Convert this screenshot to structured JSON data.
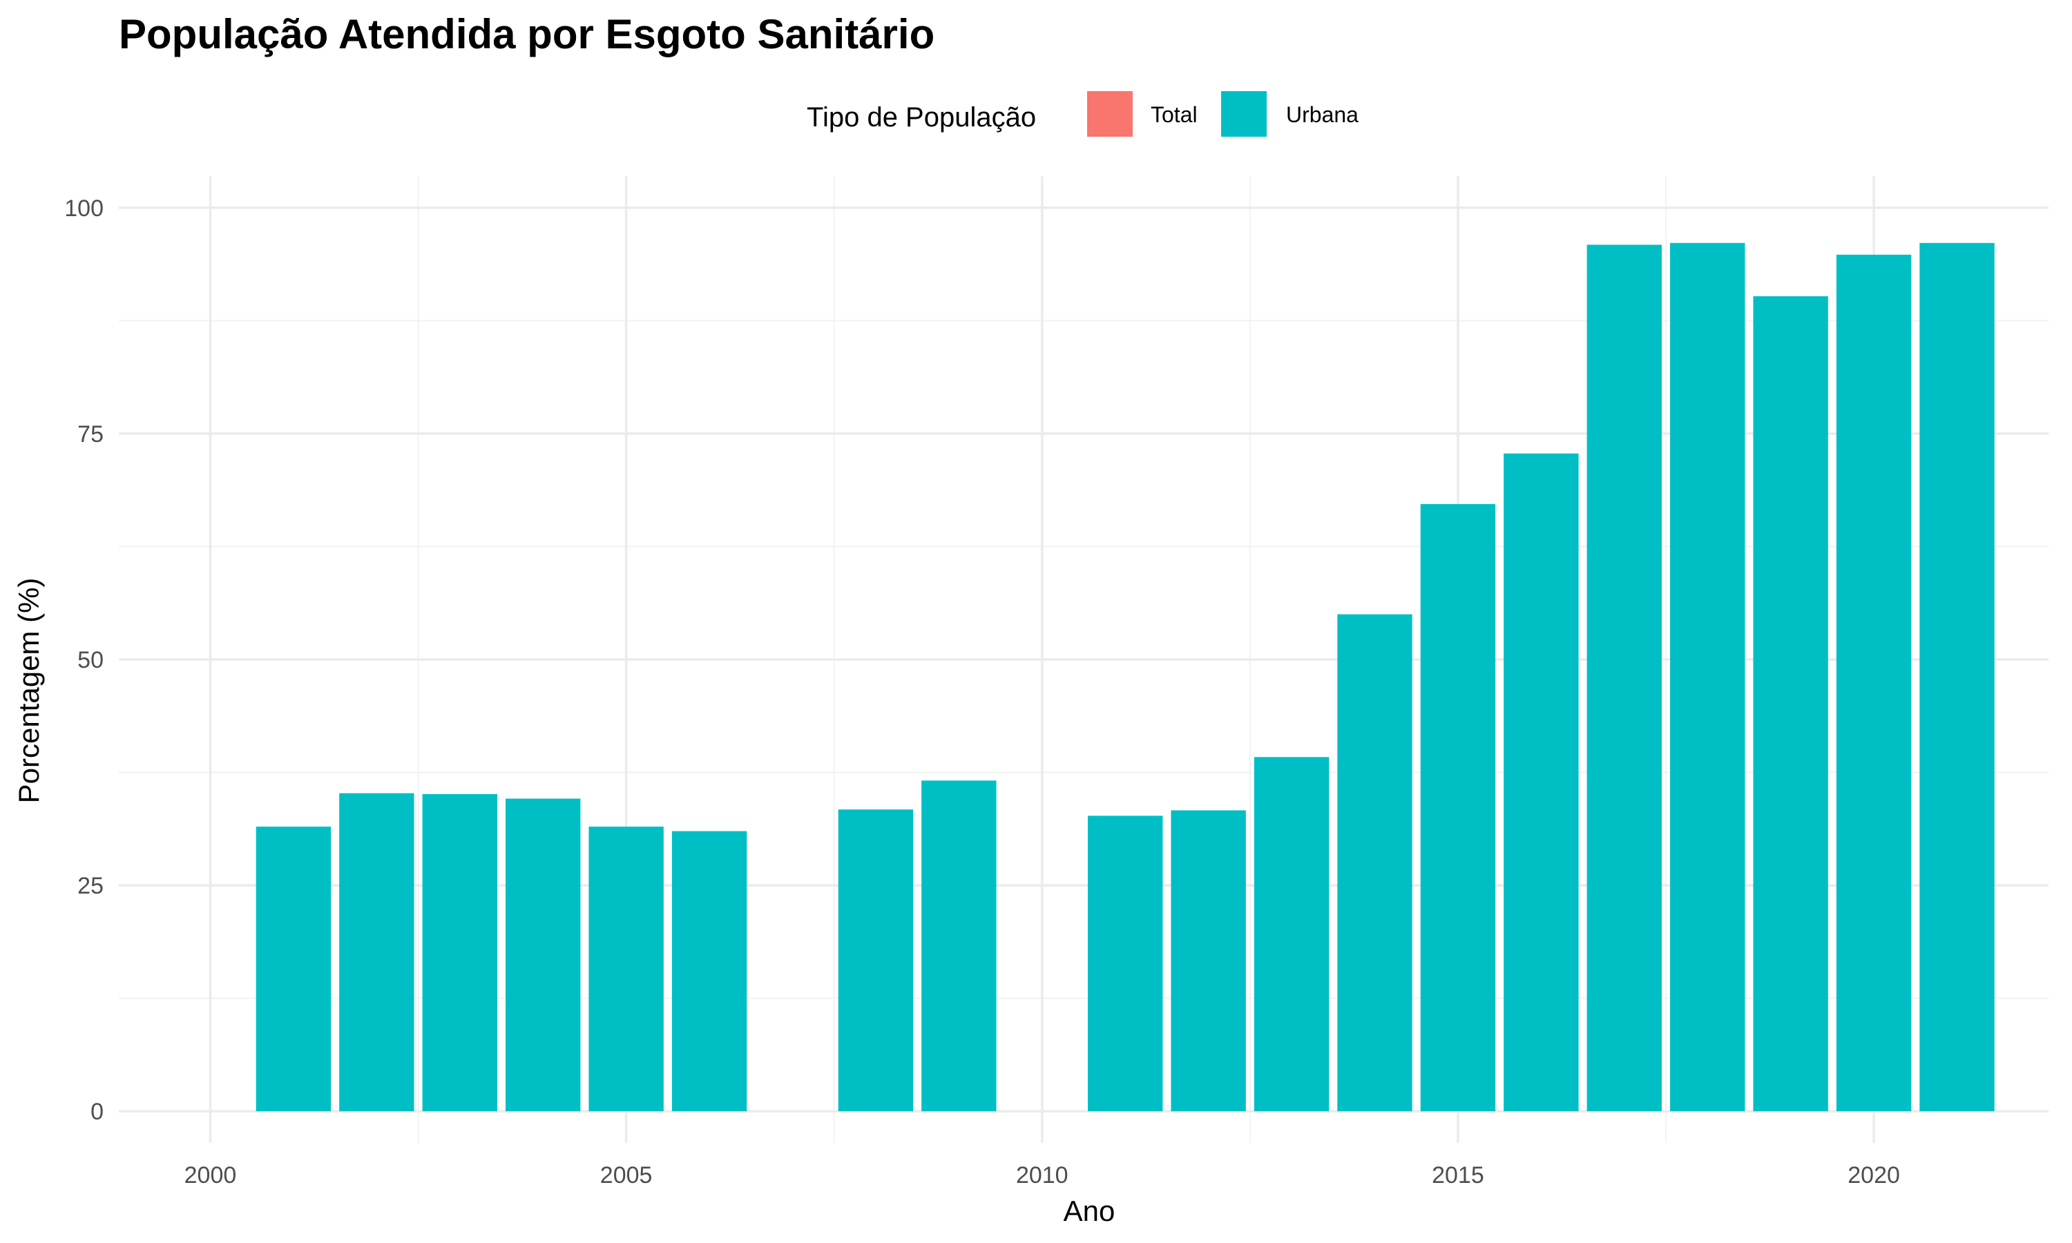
{
  "chart_data": {
    "type": "bar",
    "title": "População Atendida por Esgoto Sanitário",
    "xlabel": "Ano",
    "ylabel": "Porcentagem (%)",
    "xlim": [
      2000,
      2022
    ],
    "ylim": [
      0,
      100
    ],
    "x_ticks": [
      2000,
      2005,
      2010,
      2015,
      2020
    ],
    "y_ticks": [
      0,
      25,
      50,
      75,
      100
    ],
    "x_tick_labels": [
      "2000",
      "2005",
      "2010",
      "2015",
      "2020"
    ],
    "y_tick_labels": [
      "0",
      "25",
      "50",
      "75",
      "100"
    ],
    "grid": true,
    "legend": {
      "title": "Tipo de População",
      "position": "top",
      "entries": [
        {
          "label": "Total",
          "color": "#F8766D"
        },
        {
          "label": "Urbana",
          "color": "#00BFC4"
        }
      ]
    },
    "series": [
      {
        "name": "Urbana",
        "color": "#00BFC4",
        "x": [
          2001,
          2002,
          2003,
          2004,
          2005,
          2006,
          2008,
          2009,
          2011,
          2012,
          2013,
          2014,
          2015,
          2016,
          2017,
          2018,
          2019,
          2020,
          2021
        ],
        "values": [
          31.5,
          35.2,
          35.1,
          34.6,
          31.5,
          31.0,
          33.4,
          36.6,
          32.7,
          33.3,
          39.2,
          55.0,
          67.2,
          72.8,
          95.9,
          96.1,
          90.2,
          94.8,
          96.1
        ]
      }
    ]
  }
}
